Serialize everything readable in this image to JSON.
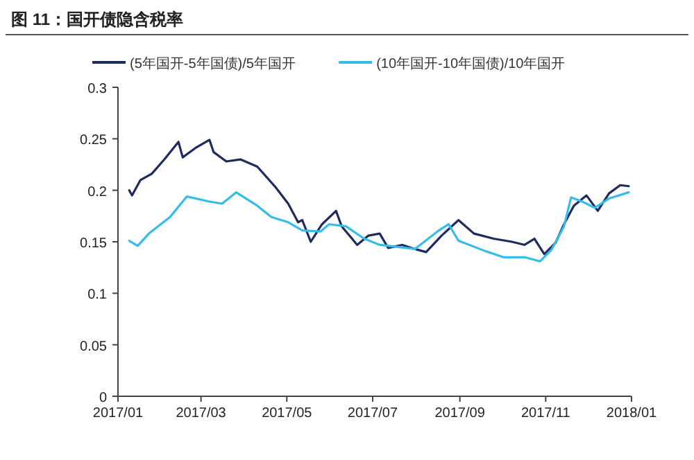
{
  "chart_data": {
    "type": "line",
    "title": "图 11：国开债隐含税率",
    "legend": "top",
    "grid": false,
    "xlim": [
      "2017-01-01",
      "2018-01-01"
    ],
    "xticks": [
      {
        "value": "2017-01-01",
        "label": "2017/01"
      },
      {
        "value": "2017-03-01",
        "label": "2017/03"
      },
      {
        "value": "2017-05-01",
        "label": "2017/05"
      },
      {
        "value": "2017-07-01",
        "label": "2017/07"
      },
      {
        "value": "2017-09-01",
        "label": "2017/09"
      },
      {
        "value": "2017-11-01",
        "label": "2017/11"
      },
      {
        "value": "2018-01-01",
        "label": "2018/01"
      }
    ],
    "ylim": [
      0,
      0.3
    ],
    "yticks": [
      0,
      0.05,
      0.1,
      0.15,
      0.2,
      0.25,
      0.3
    ],
    "series": [
      {
        "name": "(5年国开-5年国债)/5年国开",
        "color": "#1f2a5e",
        "x": [
          "2017-01-09",
          "2017-01-11",
          "2017-01-17",
          "2017-01-25",
          "2017-02-03",
          "2017-02-13",
          "2017-02-16",
          "2017-02-25",
          "2017-03-07",
          "2017-03-10",
          "2017-03-19",
          "2017-03-29",
          "2017-04-10",
          "2017-04-23",
          "2017-05-02",
          "2017-05-09",
          "2017-05-12",
          "2017-05-18",
          "2017-05-26",
          "2017-06-05",
          "2017-06-09",
          "2017-06-20",
          "2017-06-28",
          "2017-07-06",
          "2017-07-12",
          "2017-07-22",
          "2017-07-31",
          "2017-08-08",
          "2017-08-19",
          "2017-08-31",
          "2017-09-11",
          "2017-09-25",
          "2017-10-08",
          "2017-10-17",
          "2017-10-24",
          "2017-10-31",
          "2017-11-08",
          "2017-11-14",
          "2017-11-21",
          "2017-11-30",
          "2017-12-08",
          "2017-12-16",
          "2017-12-24",
          "2017-12-30"
        ],
        "values": [
          0.2,
          0.195,
          0.21,
          0.216,
          0.23,
          0.247,
          0.232,
          0.241,
          0.249,
          0.237,
          0.228,
          0.23,
          0.223,
          0.203,
          0.187,
          0.169,
          0.171,
          0.15,
          0.167,
          0.18,
          0.165,
          0.147,
          0.156,
          0.158,
          0.144,
          0.147,
          0.143,
          0.14,
          0.156,
          0.171,
          0.158,
          0.153,
          0.15,
          0.147,
          0.153,
          0.138,
          0.149,
          0.167,
          0.185,
          0.195,
          0.18,
          0.197,
          0.205,
          0.204
        ]
      },
      {
        "name": "(10年国开-10年国债)/10年国开",
        "color": "#33bde8",
        "x": [
          "2017-01-09",
          "2017-01-15",
          "2017-01-23",
          "2017-02-07",
          "2017-02-19",
          "2017-03-07",
          "2017-03-16",
          "2017-03-26",
          "2017-04-10",
          "2017-04-20",
          "2017-05-02",
          "2017-05-12",
          "2017-05-25",
          "2017-05-31",
          "2017-06-12",
          "2017-06-25",
          "2017-07-06",
          "2017-07-31",
          "2017-08-16",
          "2017-08-24",
          "2017-08-31",
          "2017-09-19",
          "2017-10-02",
          "2017-10-17",
          "2017-10-28",
          "2017-11-05",
          "2017-11-14",
          "2017-11-19",
          "2017-11-27",
          "2017-12-06",
          "2017-12-16",
          "2017-12-30"
        ],
        "values": [
          0.151,
          0.146,
          0.158,
          0.174,
          0.194,
          0.189,
          0.187,
          0.198,
          0.185,
          0.174,
          0.169,
          0.161,
          0.16,
          0.167,
          0.165,
          0.153,
          0.147,
          0.143,
          0.16,
          0.167,
          0.151,
          0.141,
          0.135,
          0.135,
          0.131,
          0.142,
          0.165,
          0.193,
          0.189,
          0.183,
          0.192,
          0.198
        ]
      }
    ]
  }
}
